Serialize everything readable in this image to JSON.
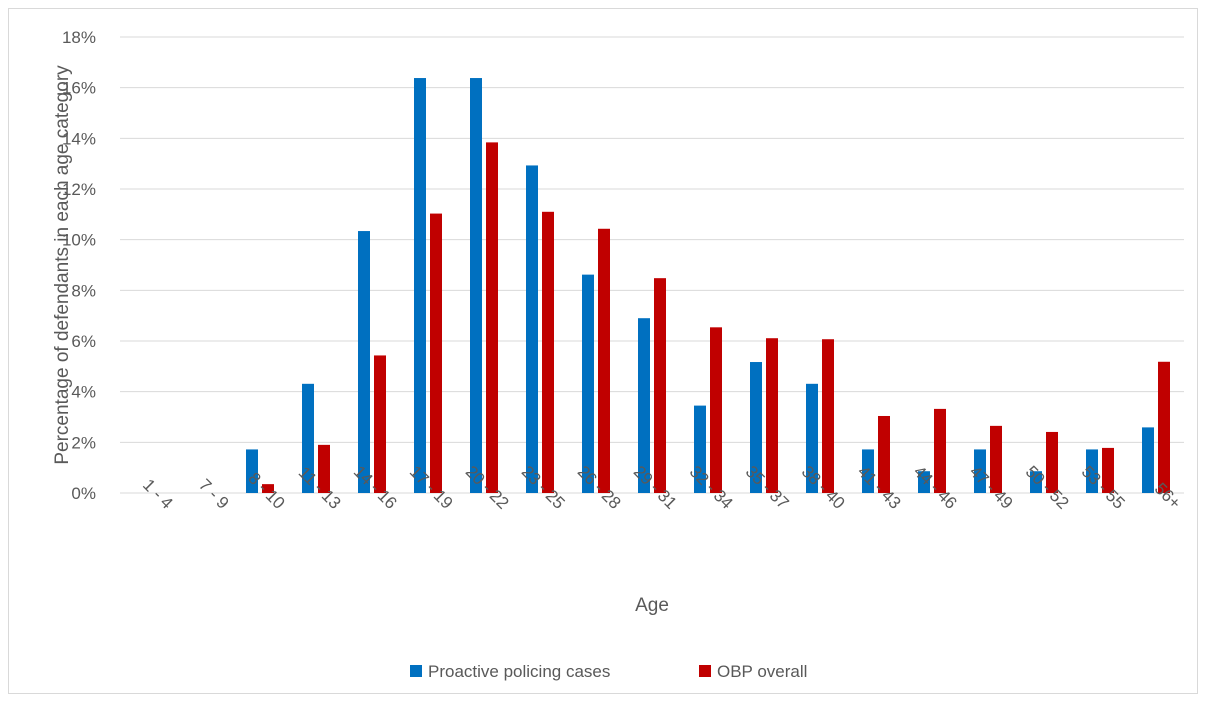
{
  "chart_data": {
    "type": "bar",
    "title": "",
    "xlabel": "Age",
    "ylabel": "Percentage of defendants in each age category",
    "ylim": [
      0,
      18
    ],
    "y_ticks": [
      "0%",
      "2%",
      "4%",
      "6%",
      "8%",
      "10%",
      "12%",
      "14%",
      "16%",
      "18%"
    ],
    "grid": true,
    "legend_position": "bottom",
    "categories": [
      "1 - 4",
      "7 - 9",
      "8 - 10",
      "11 - 13",
      "14 - 16",
      "17 - 19",
      "20 - 22",
      "23 - 25",
      "26 - 28",
      "29 - 31",
      "32 - 34",
      "35 - 37",
      "38 - 40",
      "41 - 43",
      "44 - 46",
      "47 - 49",
      "50 - 52",
      "53 - 55",
      "56+"
    ],
    "series": [
      {
        "name": "Proactive policing cases",
        "color": "#0070C0",
        "values": [
          0,
          0,
          1.72,
          4.31,
          10.34,
          16.38,
          16.38,
          12.93,
          8.62,
          6.9,
          3.45,
          5.17,
          4.31,
          1.72,
          0.86,
          1.72,
          0.86,
          1.72,
          2.59
        ]
      },
      {
        "name": "OBP overall",
        "color": "#C00000",
        "values": [
          0,
          0,
          0.35,
          1.9,
          5.43,
          11.03,
          13.84,
          11.1,
          10.43,
          8.48,
          6.54,
          6.11,
          6.07,
          3.04,
          3.32,
          2.65,
          2.41,
          1.78,
          5.18
        ]
      }
    ]
  }
}
